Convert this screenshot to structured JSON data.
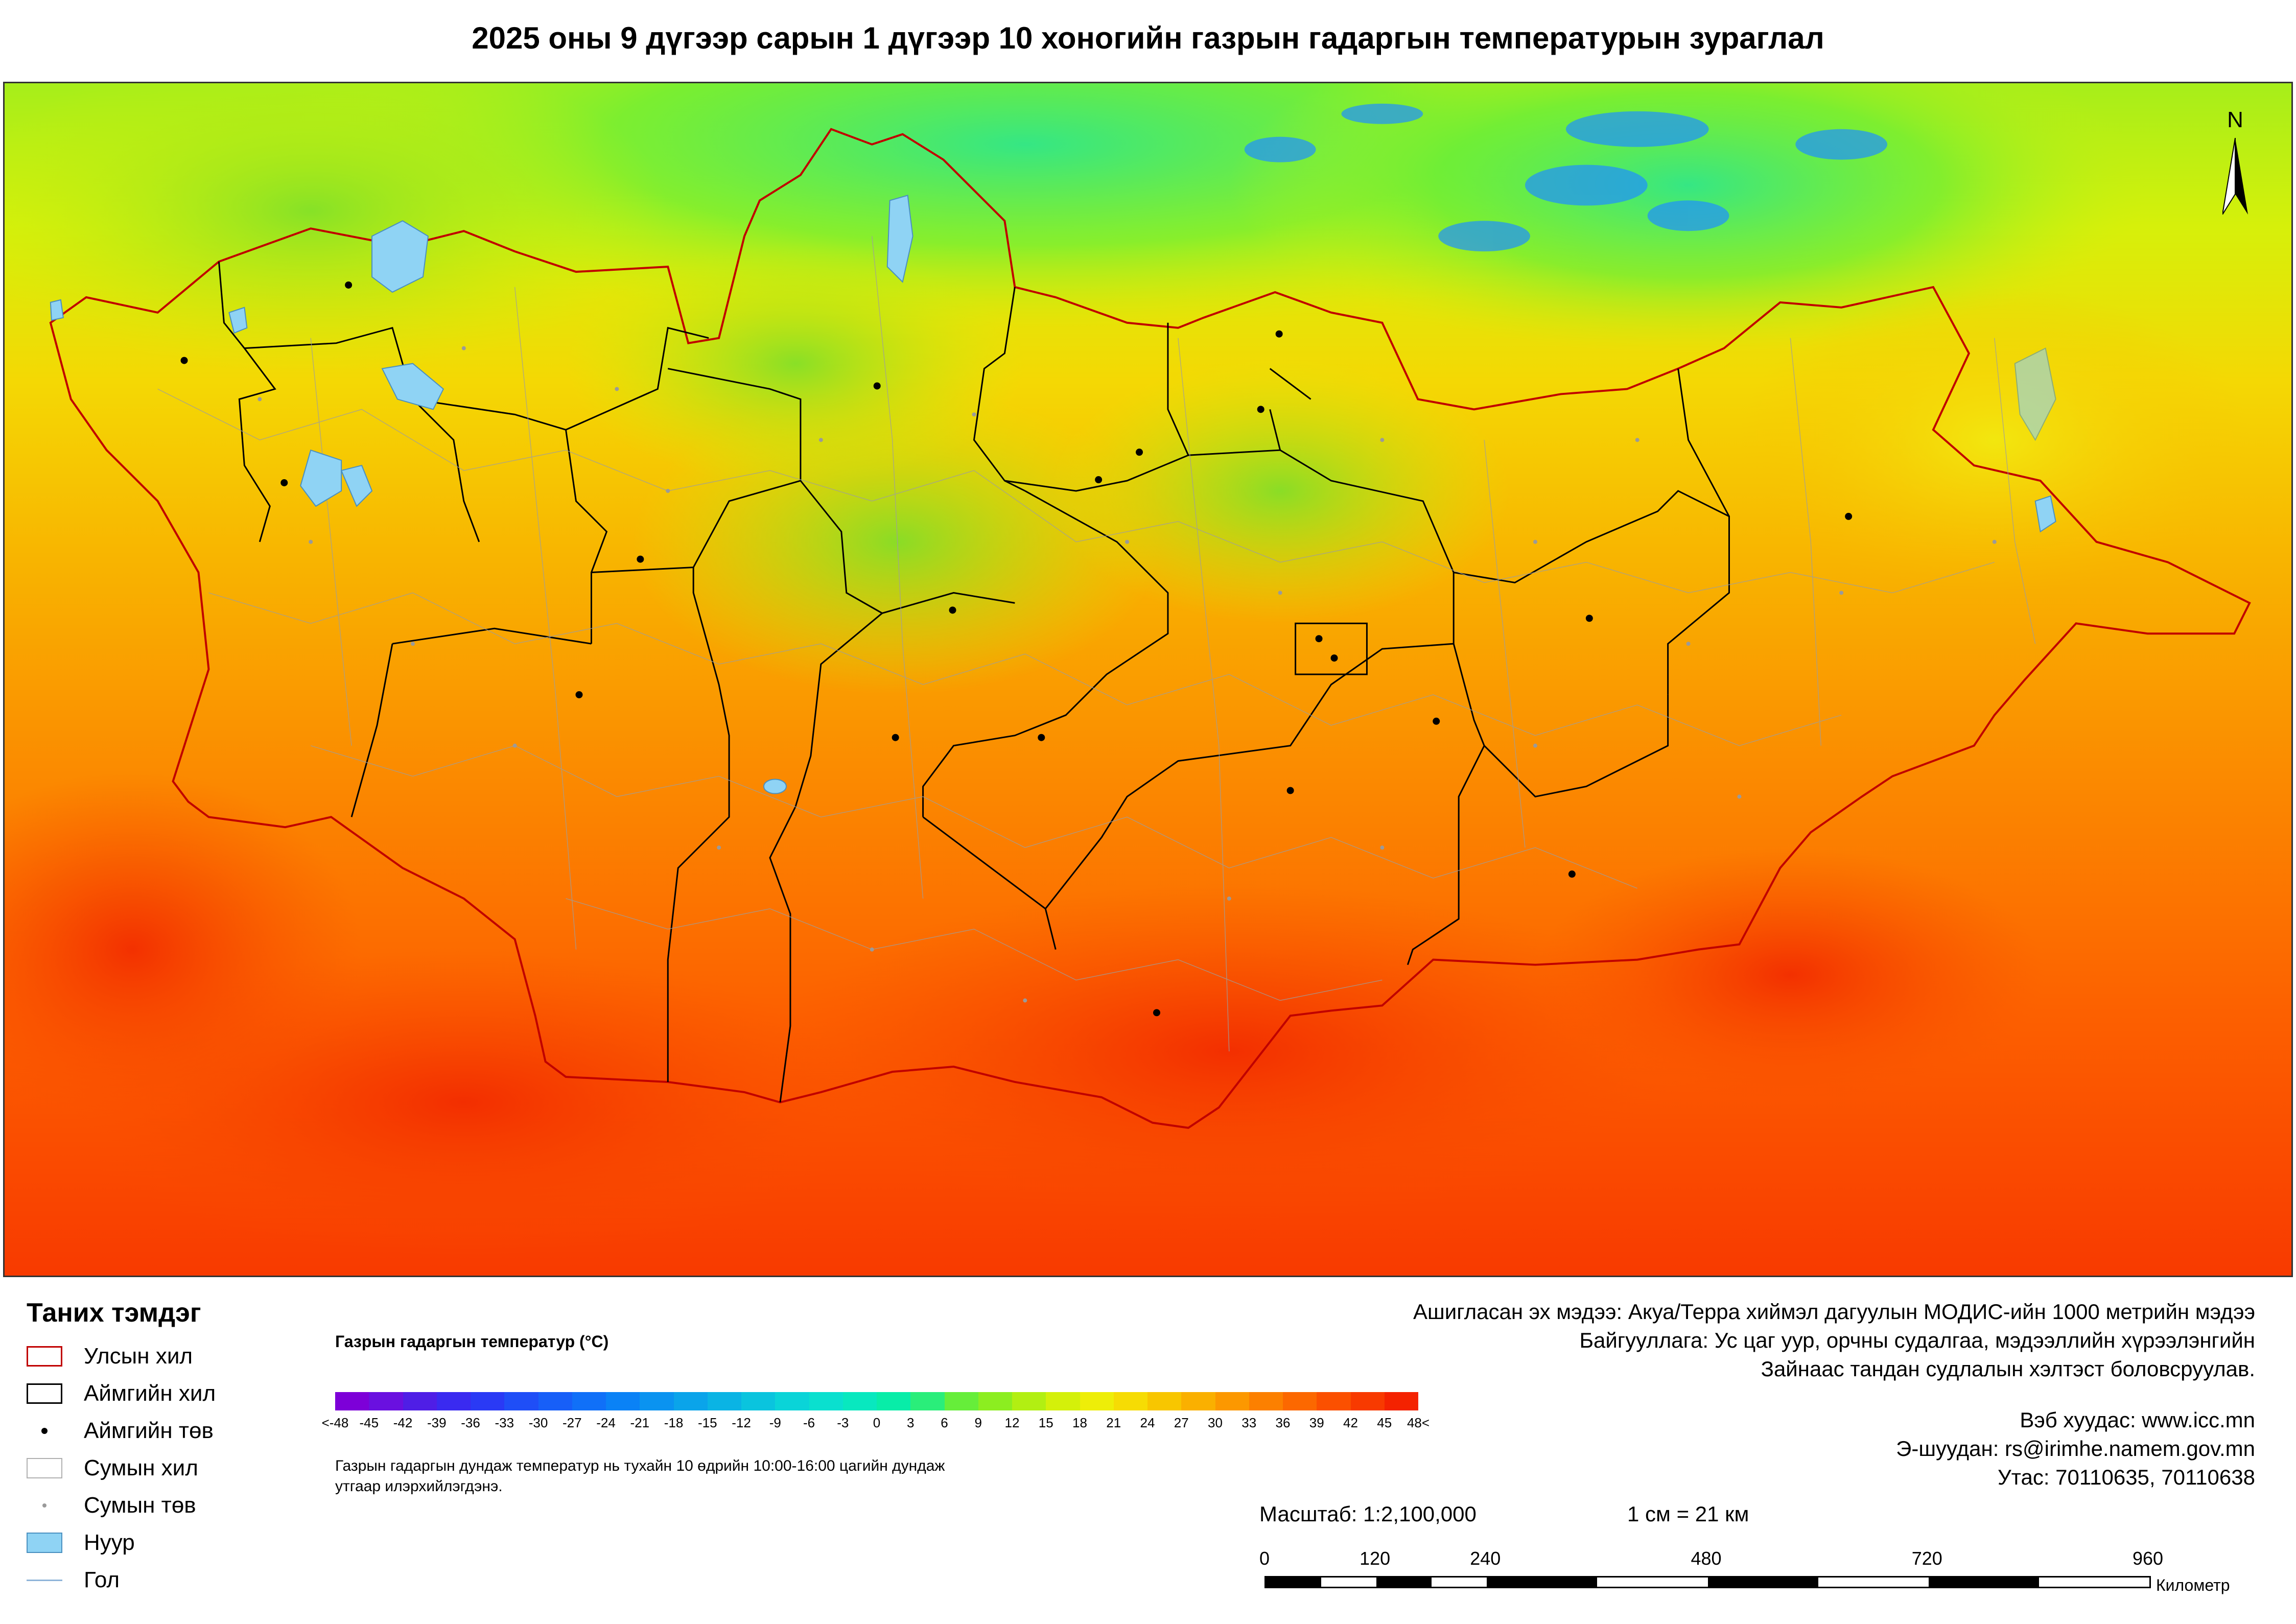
{
  "title": "2025 оны 9 дүгээр сарын 1 дүгээр 10 хоногийн газрын гадаргын температурын зураглал",
  "north_label": "N",
  "legend": {
    "title": "Таних тэмдэг",
    "items": [
      {
        "label": "Улсын хил",
        "symbol": "national-border",
        "color": "#c00000"
      },
      {
        "label": "Аймгийн хил",
        "symbol": "province-border",
        "color": "#000000"
      },
      {
        "label": "Аймгийн төв",
        "symbol": "province-center",
        "color": "#000000"
      },
      {
        "label": "Сумын хил",
        "symbol": "soum-border",
        "color": "#b0b0b0"
      },
      {
        "label": "Сумын төв",
        "symbol": "soum-center",
        "color": "#9a9a9a"
      },
      {
        "label": "Нуур",
        "symbol": "lake",
        "color": "#8fd3f4"
      },
      {
        "label": "Гол",
        "symbol": "river",
        "color": "#8fb4d9"
      }
    ]
  },
  "colorbar": {
    "title": "Газрын гадаргын температур (°C)",
    "labels": [
      "<-48",
      "-45",
      "-42",
      "-39",
      "-36",
      "-33",
      "-30",
      "-27",
      "-24",
      "-21",
      "-18",
      "-15",
      "-12",
      "-9",
      "-6",
      "-3",
      "0",
      "3",
      "6",
      "9",
      "12",
      "15",
      "18",
      "21",
      "24",
      "27",
      "30",
      "33",
      "36",
      "39",
      "42",
      "45",
      "48<"
    ],
    "colors": [
      "#7d00d8",
      "#6a10e0",
      "#4f1ee6",
      "#3a2af0",
      "#2a3af5",
      "#1f4ef7",
      "#175ff8",
      "#1070f8",
      "#0a82f6",
      "#0a93f0",
      "#0aa4ea",
      "#0ab4e4",
      "#0ac4de",
      "#0ad4d8",
      "#0ae0cf",
      "#08e8bf",
      "#08eda8",
      "#2aee7a",
      "#66ee3a",
      "#8cee20",
      "#b2ef12",
      "#d4f00a",
      "#eeee08",
      "#f6dc04",
      "#f8c600",
      "#fab000",
      "#fc9800",
      "#fc8000",
      "#fc6800",
      "#fb5000",
      "#f83a00",
      "#f42200"
    ],
    "note": "Газрын гадаргын дундаж температур нь тухайн 10 өдрийн 10:00-16:00 цагийн дундаж утгаар илэрхийлэгдэнэ."
  },
  "source": {
    "line1": "Ашигласан эх мэдээ: Акуа/Терра хиймэл дагуулын МОДИС-ийн 1000 метрийн мэдээ",
    "line2": "Байгууллага: Ус цаг уур, орчны судалгаа, мэдээллийн хүрээлэнгийн",
    "line3": "Зайнаас тандан судлалын хэлтэст боловсруулав."
  },
  "contact": {
    "web": "Вэб хуудас: www.icc.mn",
    "email": "Э-шуудан: rs@irimhe.namem.gov.mn",
    "phone": "Утас: 70110635, 70110638"
  },
  "scale": {
    "text": "Масштаб: 1:2,100,000",
    "equivalence": "1 см = 21 км",
    "labels": [
      "0",
      "120",
      "240",
      "480",
      "720",
      "960"
    ],
    "label_km": [
      0,
      120,
      240,
      480,
      720,
      960
    ],
    "unit": "Километр"
  }
}
